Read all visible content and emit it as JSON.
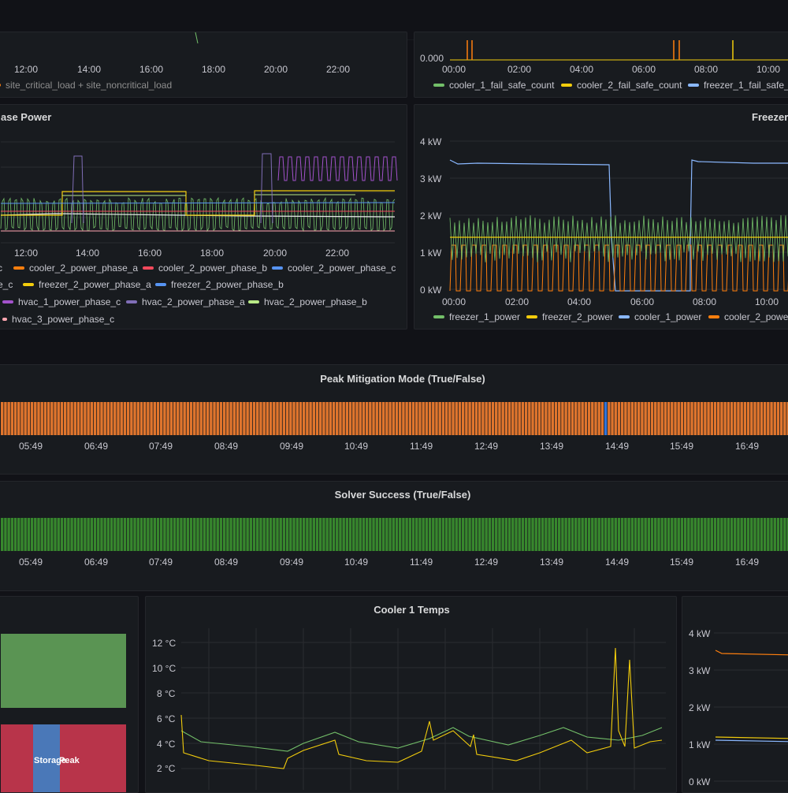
{
  "colors": {
    "green": "#73bf69",
    "orange": "#ff7f0e",
    "yellow": "#f2cc0c",
    "lightblue": "#8ab8ff",
    "red": "#f2495c",
    "blue": "#5794f2",
    "purple": "#a352cc",
    "darkpurple": "#8f3bb8",
    "lightgreen": "#b8e986",
    "pink": "#ffa6b0",
    "state_orange": "#e0752d",
    "state_blue": "#3274d9",
    "state_green": "#37872d",
    "state_red": "#c4162a"
  },
  "panel_site_load": {
    "x_ticks": [
      "12:00",
      "14:00",
      "16:00",
      "18:00",
      "20:00",
      "22:00"
    ],
    "legend": [
      "site_critical_load + site_noncritical_load"
    ]
  },
  "panel_fail_safe": {
    "y_ticks": [
      "0.000"
    ],
    "x_ticks": [
      "00:00",
      "02:00",
      "04:00",
      "06:00",
      "08:00",
      "10:00"
    ],
    "legend": [
      "cooler_1_fail_safe_count",
      "cooler_2_fail_safe_count",
      "freezer_1_fail_safe_c"
    ]
  },
  "panel_phase_power": {
    "title": "ase Power",
    "x_ticks": [
      "12:00",
      "14:00",
      "16:00",
      "18:00",
      "20:00",
      "22:00"
    ],
    "legend": [
      {
        "label": "c",
        "color": "#8ab8ff"
      },
      {
        "label": "cooler_2_power_phase_a",
        "color": "#ff7f0e"
      },
      {
        "label": "cooler_2_power_phase_b",
        "color": "#f2495c"
      },
      {
        "label": "cooler_2_power_phase_c",
        "color": "#5794f2"
      },
      {
        "label": "e_c",
        "color": "#73bf69"
      },
      {
        "label": "freezer_2_power_phase_a",
        "color": "#f2cc0c"
      },
      {
        "label": "freezer_2_power_phase_b",
        "color": "#5794f2"
      },
      {
        "label": "hvac_1_power_phase_c",
        "color": "#a352cc"
      },
      {
        "label": "hvac_2_power_phase_a",
        "color": "#806eb7"
      },
      {
        "label": "hvac_2_power_phase_b",
        "color": "#b8e986"
      },
      {
        "label": "hvac_3_power_phase_c",
        "color": "#ffa6b0"
      }
    ]
  },
  "panel_freezer": {
    "title": "Freezer",
    "y_ticks": [
      "4 kW",
      "3 kW",
      "2 kW",
      "1 kW",
      "0 kW"
    ],
    "x_ticks": [
      "00:00",
      "02:00",
      "04:00",
      "06:00",
      "08:00",
      "10:00"
    ],
    "legend": [
      "freezer_1_power",
      "freezer_2_power",
      "cooler_1_power",
      "cooler_2_powe"
    ]
  },
  "panel_peak": {
    "title": "Peak Mitigation Mode (True/False)",
    "x_ticks": [
      "05:49",
      "06:49",
      "07:49",
      "08:49",
      "09:49",
      "10:49",
      "11:49",
      "12:49",
      "13:49",
      "14:49",
      "15:49",
      "16:49"
    ]
  },
  "panel_solver": {
    "title": "Solver Success (True/False)",
    "x_ticks": [
      "05:49",
      "06:49",
      "07:49",
      "08:49",
      "09:49",
      "10:49",
      "11:49",
      "12:49",
      "13:49",
      "14:49",
      "15:49",
      "16:49"
    ]
  },
  "panel_state": {
    "labels": [
      "Storage",
      "Peak"
    ]
  },
  "panel_cooler1": {
    "title": "Cooler 1 Temps",
    "y_ticks": [
      "12 °C",
      "10 °C",
      "8 °C",
      "6 °C",
      "4 °C",
      "2 °C"
    ]
  },
  "panel_power_right": {
    "y_ticks": [
      "4 kW",
      "3 kW",
      "2 kW",
      "1 kW",
      "0 kW"
    ]
  }
}
